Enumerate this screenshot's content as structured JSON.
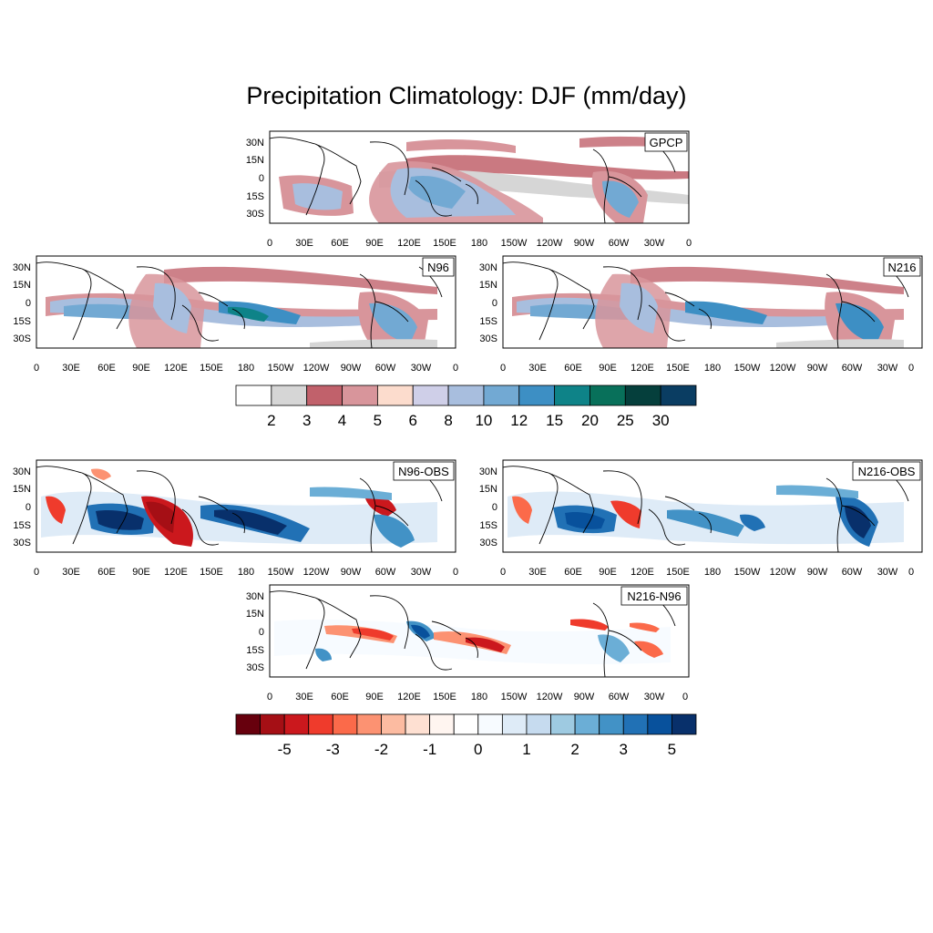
{
  "title": "Precipitation Climatology: DJF (mm/day)",
  "lat_ticks": [
    "30N",
    "15N",
    "0",
    "15S",
    "30S"
  ],
  "lon_ticks_gpcp": [
    "0",
    "30E",
    "60E",
    "90E",
    "120E",
    "150E",
    "180",
    "150W",
    "120W",
    "90W",
    "60W",
    "30W",
    "0"
  ],
  "lon_ticks": [
    "0",
    "30E",
    "60E",
    "90E",
    "120E",
    "150E",
    "180",
    "150W",
    "120W",
    "90W",
    "60W",
    "30W",
    "0"
  ],
  "panels": [
    {
      "id": "gpcp",
      "label": "GPCP",
      "scale": "climatology"
    },
    {
      "id": "n96",
      "label": "N96",
      "scale": "climatology"
    },
    {
      "id": "n216",
      "label": "N216",
      "scale": "climatology"
    },
    {
      "id": "n96-obs",
      "label": "N96-OBS",
      "scale": "difference"
    },
    {
      "id": "n216-obs",
      "label": "N216-OBS",
      "scale": "difference"
    },
    {
      "id": "n216-n96",
      "label": "N216-N96",
      "scale": "difference"
    }
  ],
  "colorbar_climatology": {
    "labels": [
      "2",
      "3",
      "4",
      "5",
      "6",
      "8",
      "10",
      "12",
      "15",
      "20",
      "25",
      "30"
    ],
    "colors": [
      "#ffffff",
      "#d6d6d6",
      "#c1616b",
      "#d8959b",
      "#fcdccd",
      "#cfcfe8",
      "#a8bede",
      "#72a9d3",
      "#3d8fc4",
      "#0e8388",
      "#08705a",
      "#053f3c",
      "#0a3d62"
    ]
  },
  "colorbar_difference": {
    "labels": [
      "-5",
      "-3",
      "-2",
      "-1",
      "0",
      "1",
      "2",
      "3",
      "5"
    ],
    "colors": [
      "#67000d",
      "#a50f15",
      "#cb181d",
      "#ef3b2c",
      "#fb6a4a",
      "#fc9272",
      "#fcbba1",
      "#fee0d2",
      "#fff5f0",
      "#ffffff",
      "#f7fbff",
      "#deebf7",
      "#c6dbef",
      "#9ecae1",
      "#6baed6",
      "#4292c6",
      "#2171b5",
      "#08519c",
      "#08306b"
    ]
  }
}
